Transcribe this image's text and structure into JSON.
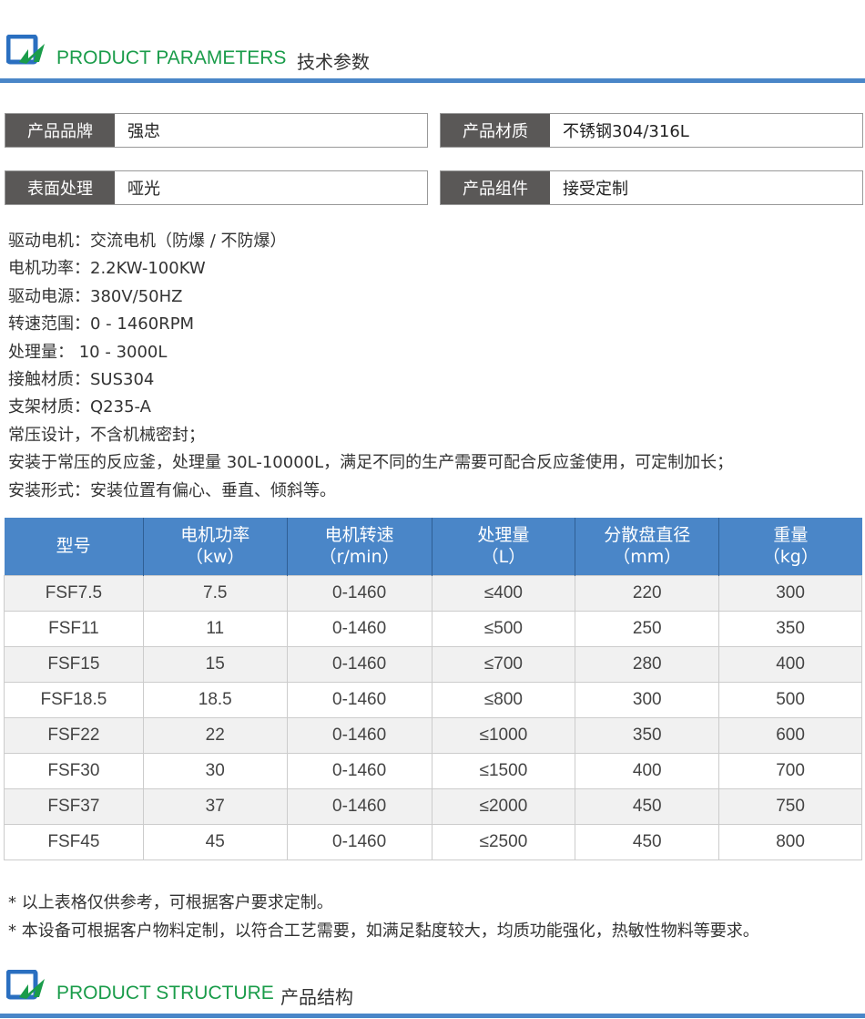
{
  "section1": {
    "title_en": "PRODUCT PARAMETERS",
    "title_cn": "技术参数"
  },
  "attributes": [
    {
      "label": "产品品牌",
      "value": "强忠"
    },
    {
      "label": "产品材质",
      "value": "不锈钢304/316L"
    },
    {
      "label": "表面处理",
      "value": "哑光"
    },
    {
      "label": "产品组件",
      "value": "接受定制"
    }
  ],
  "specs": [
    "驱动电机：交流电机（防爆 / 不防爆）",
    "电机功率：2.2KW-100KW",
    "驱动电源：380V/50HZ",
    "转速范围：0 - 1460RPM",
    "处理量： 10 - 3000L",
    "接触材质：SUS304",
    "支架材质：Q235-A",
    "常压设计，不含机械密封；",
    "安装于常压的反应釜，处理量 30L-10000L，满足不同的生产需要可配合反应釜使用，可定制加长；",
    "安装形式：安装位置有偏心、垂直、倾斜等。"
  ],
  "table": {
    "headers": [
      [
        "型号",
        ""
      ],
      [
        "电机功率",
        "（kw）"
      ],
      [
        "电机转速",
        "（r/min）"
      ],
      [
        "处理量",
        "（L）"
      ],
      [
        "分散盘直径",
        "（mm）"
      ],
      [
        "重量",
        "（kg）"
      ]
    ],
    "rows": [
      [
        "FSF7.5",
        "7.5",
        "0-1460",
        "≤400",
        "220",
        "300"
      ],
      [
        "FSF11",
        "11",
        "0-1460",
        "≤500",
        "250",
        "350"
      ],
      [
        "FSF15",
        "15",
        "0-1460",
        "≤700",
        "280",
        "400"
      ],
      [
        "FSF18.5",
        "18.5",
        "0-1460",
        "≤800",
        "300",
        "500"
      ],
      [
        "FSF22",
        "22",
        "0-1460",
        "≤1000",
        "350",
        "600"
      ],
      [
        "FSF30",
        "30",
        "0-1460",
        "≤1500",
        "400",
        "700"
      ],
      [
        "FSF37",
        "37",
        "0-1460",
        "≤2000",
        "450",
        "750"
      ],
      [
        "FSF45",
        "45",
        "0-1460",
        "≤2500",
        "450",
        "800"
      ]
    ]
  },
  "notes": [
    "* 以上表格仅供参考，可根据客户要求定制。",
    "* 本设备可根据客户物料定制，以符合工艺需要，如满足黏度较大，均质功能强化，热敏性物料等要求。"
  ],
  "section2": {
    "title_en": "PRODUCT STRUCTURE",
    "title_cn": "产品结构"
  },
  "colors": {
    "accent_blue": "#4a86c8",
    "title_green": "#1a9c4a",
    "label_gray": "#5a5857"
  }
}
